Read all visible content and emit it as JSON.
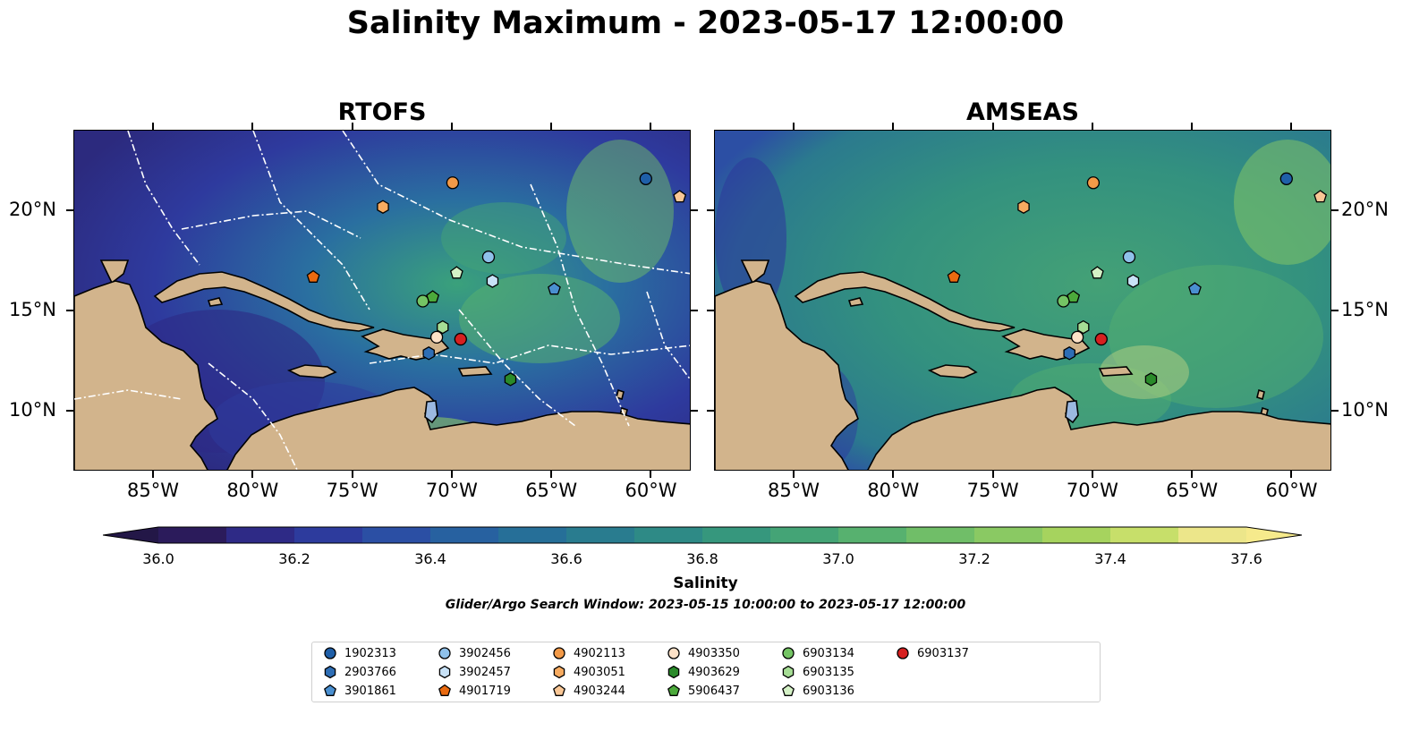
{
  "title": "Salinity Maximum - 2023-05-17 12:00:00",
  "panels": [
    {
      "title": "RTOFS"
    },
    {
      "title": "AMSEAS"
    }
  ],
  "axes": {
    "lon_ticks": [
      "85°W",
      "80°W",
      "75°W",
      "70°W",
      "65°W",
      "60°W"
    ],
    "lat_ticks": [
      "20°N",
      "15°N",
      "10°N"
    ]
  },
  "colorbar": {
    "label": "Salinity",
    "range": [
      36.0,
      37.6
    ],
    "levels": 16,
    "extend": "both",
    "tick_labels": [
      "36.0",
      "36.2",
      "36.4",
      "36.6",
      "36.8",
      "37.0",
      "37.2",
      "37.4",
      "37.6"
    ],
    "colors": [
      "#2b1b5b",
      "#2e2a86",
      "#2d3b9d",
      "#2b4fa4",
      "#2761a0",
      "#266f98",
      "#297c8f",
      "#2e8a86",
      "#36977d",
      "#44a476",
      "#57b16f",
      "#70be68",
      "#8ac963",
      "#a6d35e",
      "#c7df6a",
      "#ece68a"
    ]
  },
  "search_window": "Glider/Argo Search Window: 2023-05-15 10:00:00 to 2023-05-17 12:00:00",
  "legend": [
    {
      "label": "1902313",
      "marker": "circle",
      "color": "#1f5fa8"
    },
    {
      "label": "2903766",
      "marker": "hexagon",
      "color": "#2e6eb5"
    },
    {
      "label": "3901861",
      "marker": "pentagon",
      "color": "#4a8fd0"
    },
    {
      "label": "3902456",
      "marker": "circle",
      "color": "#8fc1ea"
    },
    {
      "label": "3902457",
      "marker": "hexagon",
      "color": "#c8e2f7"
    },
    {
      "label": "4901719",
      "marker": "pentagon",
      "color": "#ea6a10"
    },
    {
      "label": "4902113",
      "marker": "circle",
      "color": "#f39a48"
    },
    {
      "label": "4903051",
      "marker": "hexagon",
      "color": "#f7ab60"
    },
    {
      "label": "4903244",
      "marker": "pentagon",
      "color": "#f9c796"
    },
    {
      "label": "4903350",
      "marker": "circle",
      "color": "#fde1c7"
    },
    {
      "label": "4903629",
      "marker": "hexagon",
      "color": "#2a8a2a"
    },
    {
      "label": "5906437",
      "marker": "pentagon",
      "color": "#4caa3b"
    },
    {
      "label": "6903134",
      "marker": "circle",
      "color": "#74c464"
    },
    {
      "label": "6903135",
      "marker": "hexagon",
      "color": "#a6dd95"
    },
    {
      "label": "6903136",
      "marker": "pentagon",
      "color": "#d4f1c6"
    },
    {
      "label": "6903137",
      "marker": "circle",
      "color": "#d62020"
    }
  ],
  "observations": [
    {
      "id": "1902313",
      "lon": -60.3,
      "lat": 21.6
    },
    {
      "id": "4903244",
      "lon": -58.6,
      "lat": 20.7
    },
    {
      "id": "4902113",
      "lon": -70.0,
      "lat": 21.4
    },
    {
      "id": "4903051",
      "lon": -73.5,
      "lat": 20.2
    },
    {
      "id": "3902456",
      "lon": -68.2,
      "lat": 17.7
    },
    {
      "id": "6903136",
      "lon": -69.8,
      "lat": 16.9
    },
    {
      "id": "3902457",
      "lon": -68.0,
      "lat": 16.5
    },
    {
      "id": "3901861",
      "lon": -64.9,
      "lat": 16.1
    },
    {
      "id": "4901719",
      "lon": -77.0,
      "lat": 16.7
    },
    {
      "id": "6903134",
      "lon": -71.5,
      "lat": 15.5
    },
    {
      "id": "5906437",
      "lon": -71.0,
      "lat": 15.7
    },
    {
      "id": "6903135",
      "lon": -70.5,
      "lat": 14.2
    },
    {
      "id": "4903350",
      "lon": -70.8,
      "lat": 13.7
    },
    {
      "id": "6903137",
      "lon": -69.6,
      "lat": 13.6
    },
    {
      "id": "2903766",
      "lon": -71.2,
      "lat": 12.9
    },
    {
      "id": "4903629",
      "lon": -67.1,
      "lat": 11.6
    }
  ],
  "map_extent": {
    "lon": [
      -89,
      -58
    ],
    "lat": [
      7,
      24
    ]
  }
}
